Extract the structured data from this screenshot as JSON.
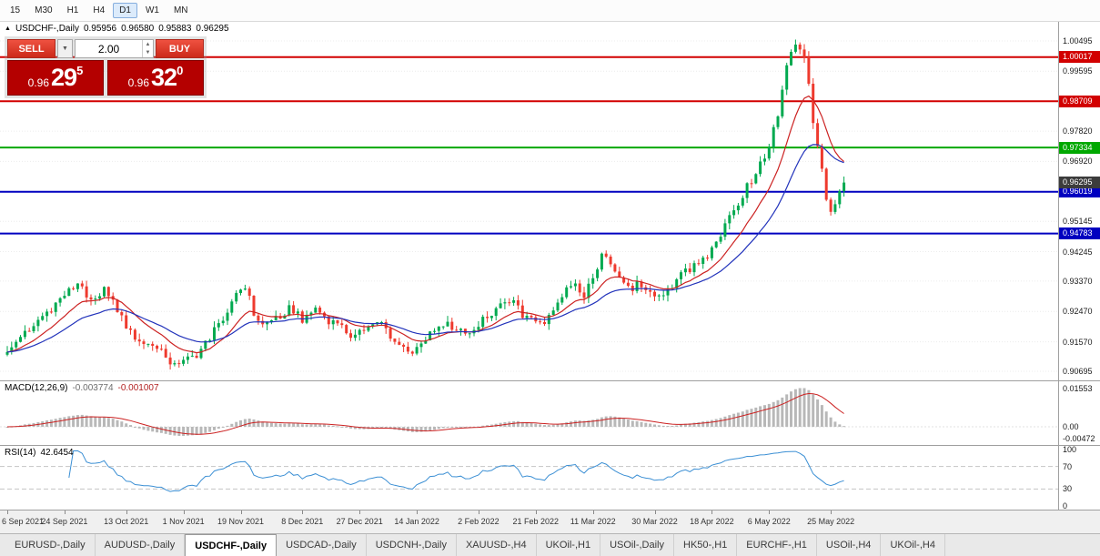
{
  "window": {
    "title": "USDCHF-,Daily"
  },
  "toolbar": {
    "timeframes": [
      "15",
      "M30",
      "H1",
      "H4",
      "D1",
      "W1",
      "MN"
    ],
    "active_timeframe": "D1"
  },
  "chart": {
    "header": {
      "symbol": "USDCHF-,Daily",
      "open": "0.95956",
      "high": "0.96580",
      "low": "0.95883",
      "close": "0.96295"
    },
    "trade_widget": {
      "sell_label": "SELL",
      "buy_label": "BUY",
      "lot_value": "2.00",
      "sell_price": {
        "small": "0.96",
        "big": "29",
        "sup": "5"
      },
      "buy_price": {
        "small": "0.96",
        "big": "32",
        "sup": "0"
      }
    }
  },
  "panels": {
    "macd": {
      "title": "MACD(12,26,9)",
      "values": [
        "-0.003774",
        "-0.001007"
      ]
    },
    "rsi": {
      "title": "RSI(14)",
      "value": "42.6454"
    }
  },
  "tabs": [
    {
      "label": "EURUSD-,Daily",
      "active": false
    },
    {
      "label": "AUDUSD-,Daily",
      "active": false
    },
    {
      "label": "USDCHF-,Daily",
      "active": true
    },
    {
      "label": "USDCAD-,Daily",
      "active": false
    },
    {
      "label": "USDCNH-,Daily",
      "active": false
    },
    {
      "label": "XAUUSD-,H4",
      "active": false
    },
    {
      "label": "UKOil-,H1",
      "active": false
    },
    {
      "label": "USOil-,Daily",
      "active": false
    },
    {
      "label": "HK50-,H1",
      "active": false
    },
    {
      "label": "EURCHF-,H1",
      "active": false
    },
    {
      "label": "USOil-,H4",
      "active": false
    },
    {
      "label": "UKOil-,H4",
      "active": false
    }
  ],
  "colors": {
    "candle_up": "#00a94f",
    "candle_down": "#ee3a2e",
    "ma_fast": "#cc2222",
    "ma_slow": "#2233bb",
    "macd_hist": "#b8b8b8",
    "macd_signal": "#cc2222",
    "rsi_line": "#3b8fd4",
    "trade_red": "#d83020",
    "price_box_red": "#b40000"
  },
  "chart_data": {
    "type": "candlestick",
    "symbol": "USDCHF",
    "timeframe": "Daily",
    "bars": 191,
    "bar_spacing_px": 4.84,
    "last_close": 0.96295,
    "ohlc_current": [
      0.95956,
      0.9658,
      0.95883,
      0.96295
    ],
    "bid": 0.96295,
    "ask": 0.9632,
    "price_anchors": [
      [
        0,
        0.9135
      ],
      [
        3,
        0.917
      ],
      [
        6,
        0.921
      ],
      [
        10,
        0.9258
      ],
      [
        13,
        0.9296
      ],
      [
        16,
        0.9328
      ],
      [
        19,
        0.9288
      ],
      [
        22,
        0.9308
      ],
      [
        25,
        0.9252
      ],
      [
        28,
        0.9182
      ],
      [
        31,
        0.9152
      ],
      [
        34,
        0.9138
      ],
      [
        37,
        0.9102
      ],
      [
        40,
        0.9096
      ],
      [
        43,
        0.912
      ],
      [
        46,
        0.9168
      ],
      [
        49,
        0.9232
      ],
      [
        52,
        0.9298
      ],
      [
        54,
        0.9326
      ],
      [
        56,
        0.924
      ],
      [
        58,
        0.9206
      ],
      [
        61,
        0.9228
      ],
      [
        64,
        0.9256
      ],
      [
        67,
        0.9226
      ],
      [
        70,
        0.9256
      ],
      [
        73,
        0.9222
      ],
      [
        76,
        0.92
      ],
      [
        79,
        0.9172
      ],
      [
        82,
        0.92
      ],
      [
        85,
        0.9212
      ],
      [
        88,
        0.9158
      ],
      [
        91,
        0.9122
      ],
      [
        94,
        0.9156
      ],
      [
        97,
        0.9198
      ],
      [
        100,
        0.9214
      ],
      [
        103,
        0.9186
      ],
      [
        106,
        0.9196
      ],
      [
        109,
        0.9232
      ],
      [
        112,
        0.9272
      ],
      [
        115,
        0.9268
      ],
      [
        118,
        0.9226
      ],
      [
        121,
        0.9206
      ],
      [
        124,
        0.9256
      ],
      [
        127,
        0.9316
      ],
      [
        129,
        0.9338
      ],
      [
        131,
        0.929
      ],
      [
        133,
        0.9348
      ],
      [
        135,
        0.9406
      ],
      [
        137,
        0.9388
      ],
      [
        139,
        0.9344
      ],
      [
        141,
        0.9312
      ],
      [
        144,
        0.933
      ],
      [
        147,
        0.9292
      ],
      [
        150,
        0.9312
      ],
      [
        153,
        0.9356
      ],
      [
        156,
        0.9386
      ],
      [
        159,
        0.9416
      ],
      [
        162,
        0.9478
      ],
      [
        165,
        0.9548
      ],
      [
        168,
        0.9618
      ],
      [
        171,
        0.9682
      ],
      [
        173,
        0.9736
      ],
      [
        175,
        0.9836
      ],
      [
        176,
        0.9896
      ],
      [
        177,
        0.9966
      ],
      [
        178,
        1.0022
      ],
      [
        179,
        1.0038
      ],
      [
        181,
        0.9996
      ],
      [
        182,
        0.9916
      ],
      [
        183,
        0.9812
      ],
      [
        184,
        0.9742
      ],
      [
        185,
        0.9664
      ],
      [
        186,
        0.9586
      ],
      [
        187,
        0.9542
      ],
      [
        188,
        0.9562
      ],
      [
        189,
        0.9598
      ],
      [
        190,
        0.96295
      ]
    ],
    "y_axis_ticks": [
      1.00495,
      0.99595,
      0.9782,
      0.9692,
      0.95145,
      0.94245,
      0.9337,
      0.9247,
      0.9157,
      0.90695
    ],
    "levels": [
      {
        "price": 1.00017,
        "color": "#d20000"
      },
      {
        "price": 0.98709,
        "color": "#d20000"
      },
      {
        "price": 0.97334,
        "color": "#00a800"
      },
      {
        "price": 0.96019,
        "color": "#0000c0"
      },
      {
        "price": 0.94783,
        "color": "#0000c0"
      }
    ],
    "current_price_marker": {
      "price": 0.96295,
      "box_color": "#3c3c3c"
    },
    "moving_averages": [
      {
        "period": 12,
        "color": "#cc2222"
      },
      {
        "period": 26,
        "color": "#2233bb"
      }
    ],
    "date_labels": [
      {
        "text": "6 Sep 2021",
        "bar": 0
      },
      {
        "text": "24 Sep 2021",
        "bar": 13
      },
      {
        "text": "13 Oct 2021",
        "bar": 27
      },
      {
        "text": "1 Nov 2021",
        "bar": 40
      },
      {
        "text": "19 Nov 2021",
        "bar": 53
      },
      {
        "text": "8 Dec 2021",
        "bar": 67
      },
      {
        "text": "27 Dec 2021",
        "bar": 80
      },
      {
        "text": "14 Jan 2022",
        "bar": 93
      },
      {
        "text": "2 Feb 2022",
        "bar": 107
      },
      {
        "text": "21 Feb 2022",
        "bar": 120
      },
      {
        "text": "11 Mar 2022",
        "bar": 133
      },
      {
        "text": "30 Mar 2022",
        "bar": 147
      },
      {
        "text": "18 Apr 2022",
        "bar": 160
      },
      {
        "text": "6 May 2022",
        "bar": 173
      },
      {
        "text": "25 May 2022",
        "bar": 187
      }
    ],
    "macd": {
      "fast": 12,
      "slow": 26,
      "signal": 9,
      "display_values": [
        "-0.003774",
        "-0.001007"
      ],
      "axis": [
        {
          "label": "0.01553",
          "value": 0.01553
        },
        {
          "label": "0.00",
          "value": 0
        },
        {
          "label": "-0.00472",
          "value": -0.00472
        }
      ]
    },
    "rsi": {
      "period": 14,
      "value": 42.6454,
      "axis": [
        100,
        70,
        30,
        0
      ],
      "guide_levels": [
        70,
        30
      ]
    }
  }
}
